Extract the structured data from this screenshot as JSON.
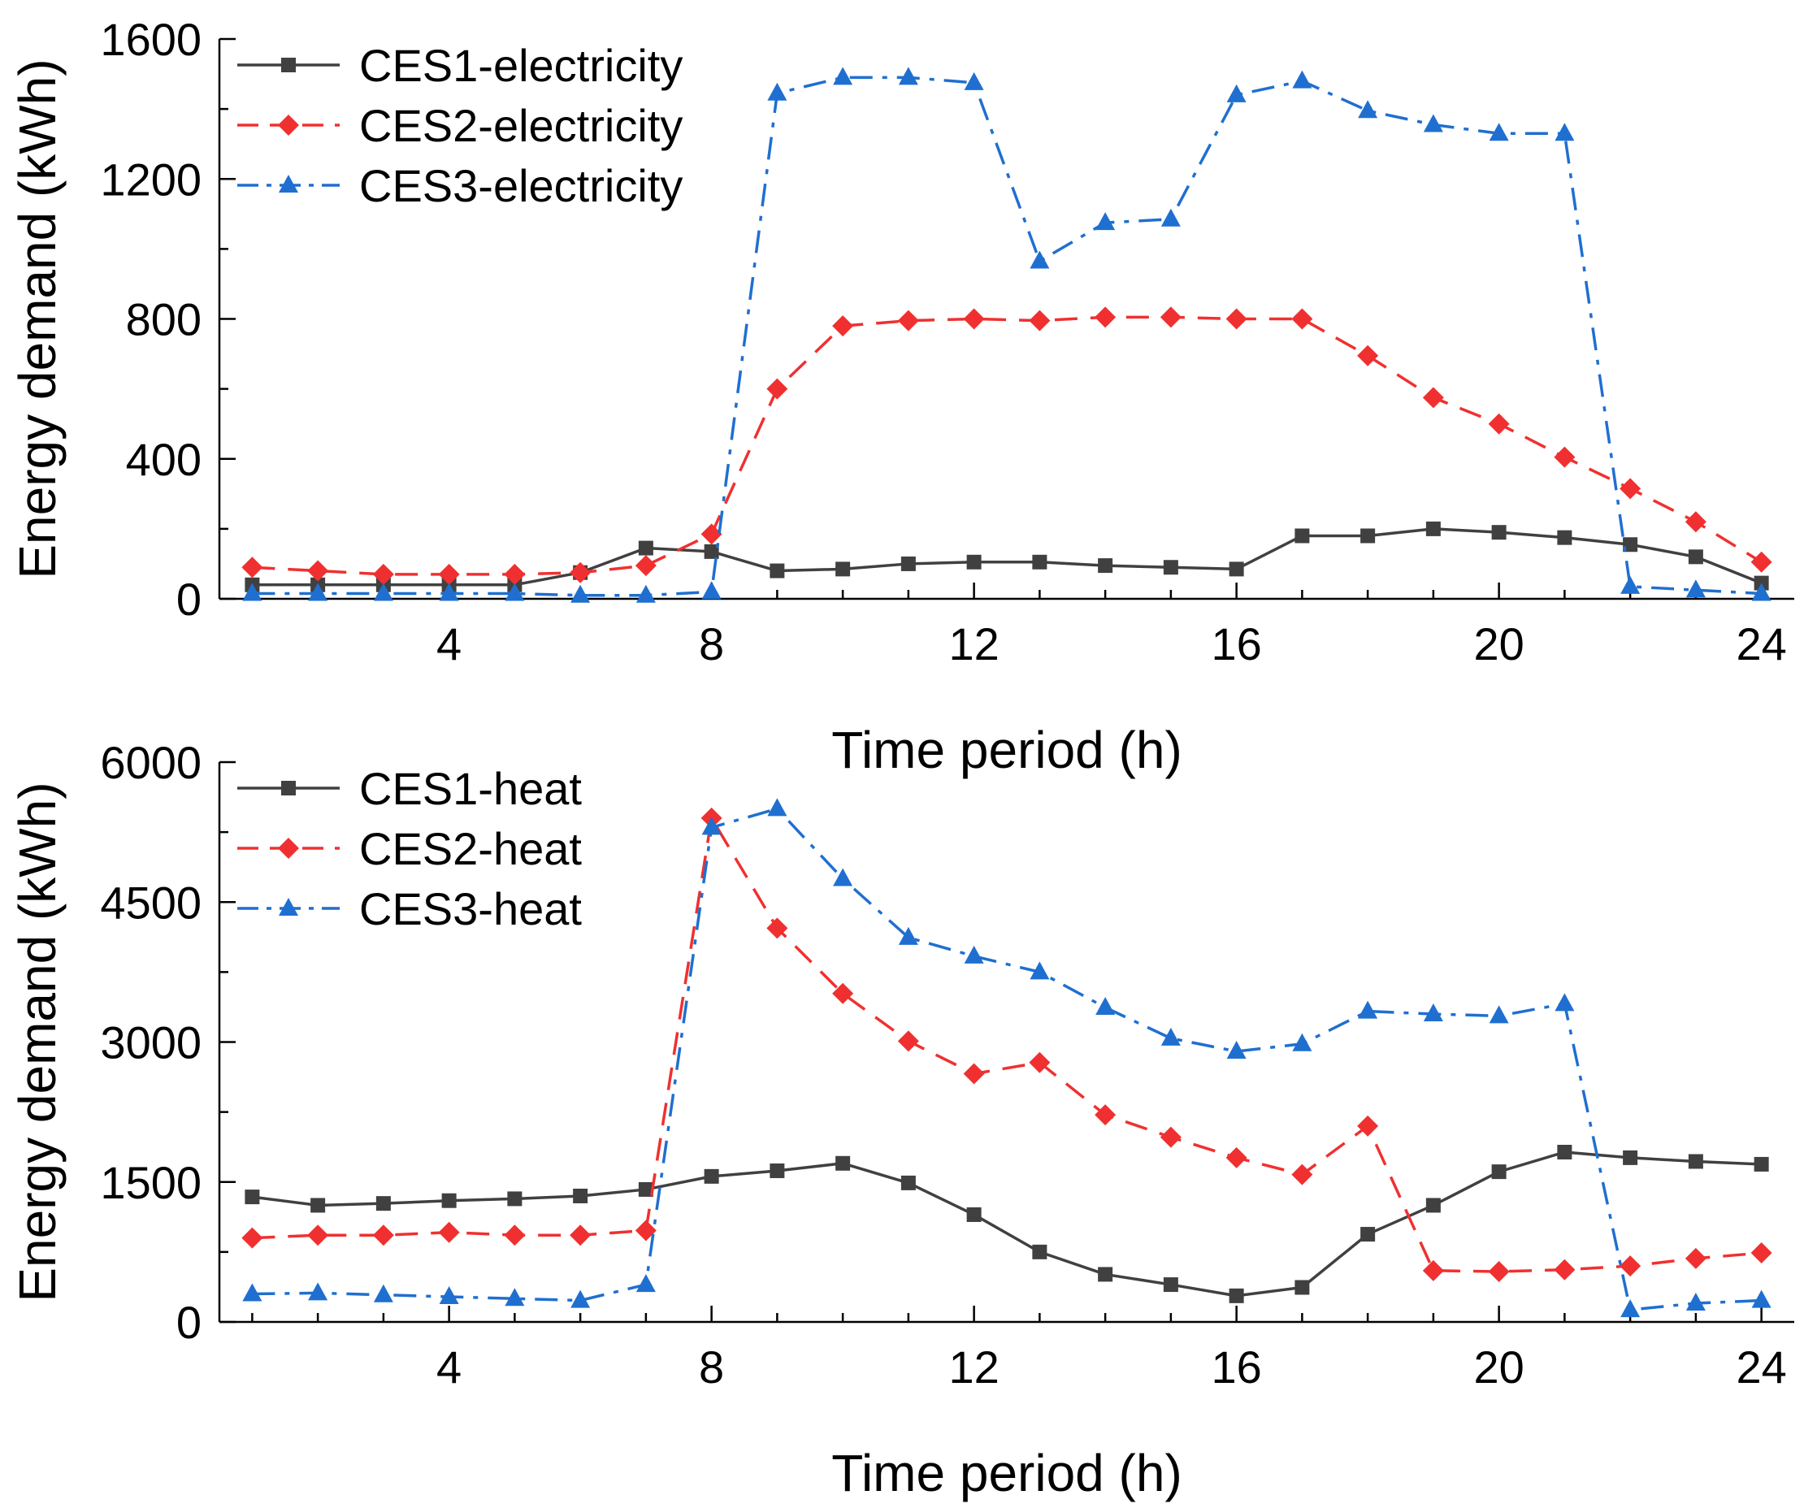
{
  "chart_data": [
    {
      "type": "line",
      "title": "",
      "xlabel": "Time period (h)",
      "ylabel": "Energy demand (kWh)",
      "xlim": [
        0.5,
        24.5
      ],
      "ylim": [
        0,
        1600
      ],
      "xticks": [
        4,
        8,
        12,
        16,
        20,
        24
      ],
      "yticks": [
        0,
        400,
        800,
        1200,
        1600
      ],
      "legend_position": "top-left",
      "x": [
        1,
        2,
        3,
        4,
        5,
        6,
        7,
        8,
        9,
        10,
        11,
        12,
        13,
        14,
        15,
        16,
        17,
        18,
        19,
        20,
        21,
        22,
        23,
        24
      ],
      "series": [
        {
          "name": "CES1-electricity",
          "color": "#404040",
          "dash": "solid",
          "marker": "square",
          "values": [
            40,
            40,
            40,
            40,
            40,
            75,
            145,
            135,
            80,
            85,
            100,
            105,
            105,
            95,
            90,
            85,
            180,
            180,
            200,
            190,
            175,
            155,
            120,
            45
          ]
        },
        {
          "name": "CES2-electricity",
          "color": "#f03030",
          "dash": "dash",
          "marker": "diamond",
          "values": [
            90,
            80,
            70,
            70,
            70,
            75,
            95,
            185,
            600,
            780,
            795,
            800,
            795,
            805,
            805,
            800,
            800,
            695,
            575,
            500,
            405,
            315,
            220,
            105
          ]
        },
        {
          "name": "CES3-electricity",
          "color": "#1f6fd0",
          "dash": "dashdot",
          "marker": "triangle",
          "values": [
            15,
            15,
            15,
            15,
            15,
            10,
            10,
            20,
            1445,
            1490,
            1490,
            1475,
            965,
            1075,
            1085,
            1440,
            1480,
            1395,
            1355,
            1330,
            1330,
            35,
            25,
            15
          ]
        }
      ]
    },
    {
      "type": "line",
      "title": "",
      "xlabel": "Time period (h)",
      "ylabel": "Energy demand (kWh)",
      "xlim": [
        0.5,
        24.5
      ],
      "ylim": [
        0,
        6000
      ],
      "xticks": [
        4,
        8,
        12,
        16,
        20,
        24
      ],
      "yticks": [
        0,
        1500,
        3000,
        4500,
        6000
      ],
      "legend_position": "top-left",
      "x": [
        1,
        2,
        3,
        4,
        5,
        6,
        7,
        8,
        9,
        10,
        11,
        12,
        13,
        14,
        15,
        16,
        17,
        18,
        19,
        20,
        21,
        22,
        23,
        24
      ],
      "series": [
        {
          "name": "CES1-heat",
          "color": "#404040",
          "dash": "solid",
          "marker": "square",
          "values": [
            1340,
            1250,
            1270,
            1300,
            1320,
            1350,
            1420,
            1560,
            1620,
            1700,
            1490,
            1150,
            750,
            510,
            400,
            280,
            370,
            940,
            1250,
            1610,
            1820,
            1760,
            1720,
            1690
          ]
        },
        {
          "name": "CES2-heat",
          "color": "#f03030",
          "dash": "dash",
          "marker": "diamond",
          "values": [
            900,
            930,
            930,
            960,
            930,
            930,
            980,
            5400,
            4220,
            3520,
            3010,
            2660,
            2780,
            2220,
            1980,
            1760,
            1580,
            2100,
            550,
            540,
            560,
            600,
            680,
            740
          ]
        },
        {
          "name": "CES3-heat",
          "color": "#1f6fd0",
          "dash": "dashdot",
          "marker": "triangle",
          "values": [
            300,
            310,
            290,
            270,
            250,
            230,
            400,
            5300,
            5500,
            4750,
            4120,
            3920,
            3750,
            3370,
            3040,
            2900,
            2980,
            3330,
            3300,
            3280,
            3410,
            130,
            200,
            230
          ]
        }
      ]
    }
  ]
}
